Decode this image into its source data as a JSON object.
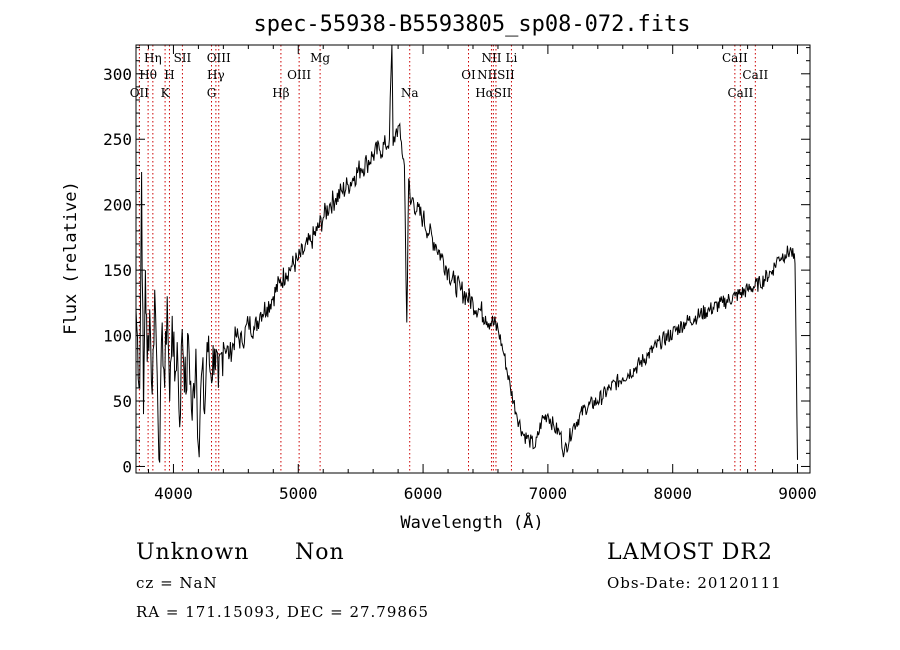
{
  "chart_data": {
    "type": "line",
    "title": "spec-55938-B5593805_sp08-072.fits",
    "xlabel": "Wavelength (Å)",
    "ylabel": "Flux (relative)",
    "xlim": [
      3700,
      9100
    ],
    "ylim": [
      -5,
      322
    ],
    "xticks": [
      4000,
      5000,
      6000,
      7000,
      8000,
      9000
    ],
    "yticks": [
      0,
      50,
      100,
      150,
      200,
      250,
      300
    ],
    "grid": false,
    "line_color": "#000000",
    "marker_color": "#cc0000",
    "series": [
      {
        "values": [
          [
            3700,
            120
          ],
          [
            3730,
            60
          ],
          [
            3745,
            225
          ],
          [
            3760,
            40
          ],
          [
            3775,
            150
          ],
          [
            3790,
            80
          ],
          [
            3810,
            120
          ],
          [
            3830,
            55
          ],
          [
            3850,
            135
          ],
          [
            3870,
            70
          ],
          [
            3890,
            3
          ],
          [
            3910,
            110
          ],
          [
            3930,
            60
          ],
          [
            3950,
            130
          ],
          [
            3970,
            50
          ],
          [
            3990,
            115
          ],
          [
            4010,
            65
          ],
          [
            4030,
            95
          ],
          [
            4050,
            30
          ],
          [
            4070,
            105
          ],
          [
            4100,
            55
          ],
          [
            4120,
            100
          ],
          [
            4150,
            35
          ],
          [
            4180,
            90
          ],
          [
            4200,
            15
          ],
          [
            4230,
            75
          ],
          [
            4250,
            40
          ],
          [
            4270,
            95
          ],
          [
            4300,
            70
          ],
          [
            4330,
            90
          ],
          [
            4360,
            60
          ],
          [
            4400,
            95
          ],
          [
            4450,
            85
          ],
          [
            4500,
            100
          ],
          [
            4550,
            95
          ],
          [
            4600,
            110
          ],
          [
            4650,
            105
          ],
          [
            4700,
            118
          ],
          [
            4750,
            122
          ],
          [
            4800,
            130
          ],
          [
            4850,
            140
          ],
          [
            4900,
            148
          ],
          [
            4950,
            153
          ],
          [
            5000,
            158
          ],
          [
            5050,
            165
          ],
          [
            5100,
            172
          ],
          [
            5150,
            180
          ],
          [
            5200,
            190
          ],
          [
            5250,
            200
          ],
          [
            5300,
            205
          ],
          [
            5350,
            210
          ],
          [
            5400,
            215
          ],
          [
            5450,
            222
          ],
          [
            5500,
            228
          ],
          [
            5550,
            232
          ],
          [
            5600,
            238
          ],
          [
            5650,
            242
          ],
          [
            5700,
            245
          ],
          [
            5730,
            250
          ],
          [
            5750,
            322
          ],
          [
            5760,
            245
          ],
          [
            5780,
            255
          ],
          [
            5800,
            260
          ],
          [
            5820,
            250
          ],
          [
            5850,
            230
          ],
          [
            5870,
            110
          ],
          [
            5885,
            220
          ],
          [
            5900,
            200
          ],
          [
            5920,
            205
          ],
          [
            5950,
            195
          ],
          [
            6000,
            190
          ],
          [
            6050,
            178
          ],
          [
            6100,
            170
          ],
          [
            6150,
            160
          ],
          [
            6200,
            150
          ],
          [
            6250,
            140
          ],
          [
            6300,
            135
          ],
          [
            6350,
            130
          ],
          [
            6400,
            125
          ],
          [
            6450,
            120
          ],
          [
            6500,
            115
          ],
          [
            6550,
            110
          ],
          [
            6600,
            105
          ],
          [
            6650,
            85
          ],
          [
            6700,
            60
          ],
          [
            6750,
            40
          ],
          [
            6800,
            25
          ],
          [
            6850,
            20
          ],
          [
            6900,
            15
          ],
          [
            6950,
            35
          ],
          [
            7000,
            40
          ],
          [
            7050,
            30
          ],
          [
            7100,
            25
          ],
          [
            7130,
            10
          ],
          [
            7200,
            30
          ],
          [
            7300,
            45
          ],
          [
            7400,
            50
          ],
          [
            7500,
            60
          ],
          [
            7600,
            68
          ],
          [
            7700,
            75
          ],
          [
            7800,
            85
          ],
          [
            7900,
            95
          ],
          [
            8000,
            102
          ],
          [
            8100,
            110
          ],
          [
            8200,
            115
          ],
          [
            8300,
            120
          ],
          [
            8400,
            125
          ],
          [
            8500,
            130
          ],
          [
            8600,
            135
          ],
          [
            8700,
            140
          ],
          [
            8800,
            150
          ],
          [
            8850,
            160
          ],
          [
            8900,
            162
          ],
          [
            8950,
            165
          ],
          [
            8980,
            155
          ],
          [
            8990,
            80
          ],
          [
            9000,
            5
          ]
        ]
      }
    ],
    "lines": [
      {
        "label": "Hη",
        "wavelength": 3835,
        "row": 1
      },
      {
        "label": "Hθ",
        "wavelength": 3797,
        "row": 2
      },
      {
        "label": "OII",
        "wavelength": 3727,
        "row": 3
      },
      {
        "label": "SII",
        "wavelength": 4072,
        "row": 1
      },
      {
        "label": "H",
        "wavelength": 3968,
        "row": 2
      },
      {
        "label": "K",
        "wavelength": 3933,
        "row": 3
      },
      {
        "label": "OIII",
        "wavelength": 4363,
        "row": 1
      },
      {
        "label": "Hγ",
        "wavelength": 4340,
        "row": 2
      },
      {
        "label": "G",
        "wavelength": 4305,
        "row": 3
      },
      {
        "label": "Mg",
        "wavelength": 5175,
        "row": 1
      },
      {
        "label": "OIII",
        "wavelength": 5007,
        "row": 2
      },
      {
        "label": "Hβ",
        "wavelength": 4861,
        "row": 3
      },
      {
        "label": "Na",
        "wavelength": 5893,
        "row": 3
      },
      {
        "label": "NII",
        "wavelength": 6548,
        "row": 1
      },
      {
        "label": "Li",
        "wavelength": 6708,
        "row": 1
      },
      {
        "label": "OI",
        "wavelength": 6364,
        "row": 2
      },
      {
        "label": "NIISII",
        "wavelength": 6584,
        "row": 2
      },
      {
        "label": "HαSII",
        "wavelength": 6563,
        "row": 3
      },
      {
        "label": "CaII",
        "wavelength": 8498,
        "row": 1
      },
      {
        "label": "CaII",
        "wavelength": 8662,
        "row": 2
      },
      {
        "label": "CaII",
        "wavelength": 8542,
        "row": 3
      }
    ]
  },
  "info": {
    "class": "Unknown",
    "subclass": "Non",
    "survey": "LAMOST DR2",
    "cz": "cz = NaN",
    "obs_date": "Obs-Date: 20120111",
    "coords": "RA = 171.15093, DEC =  27.79865"
  }
}
